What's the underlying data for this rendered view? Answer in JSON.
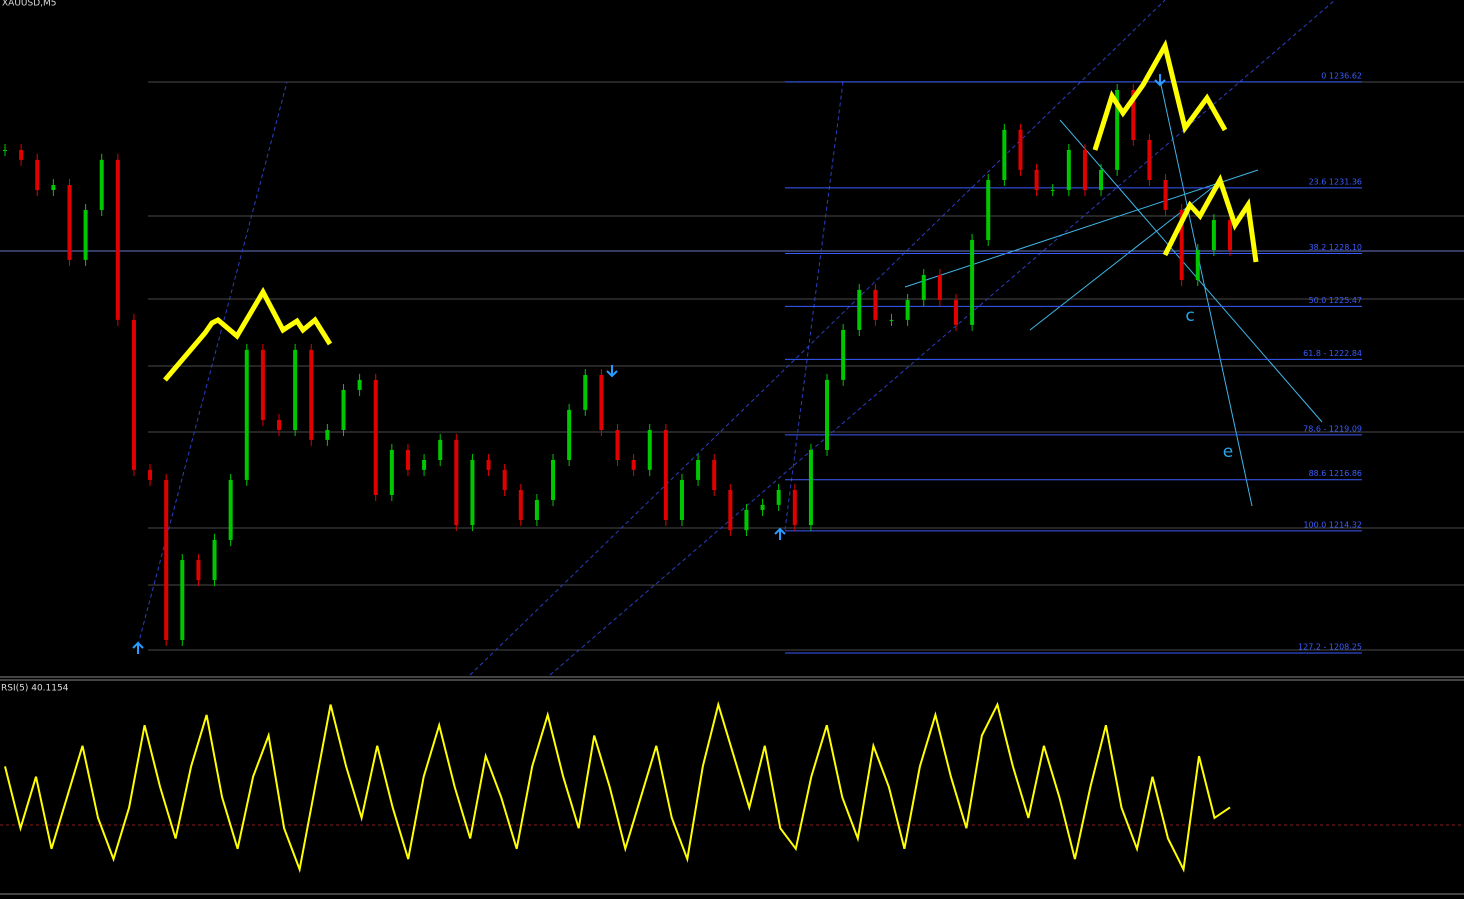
{
  "header": {
    "symbol": "XAUUSD,M5"
  },
  "chart_data": [
    {
      "type": "candlestick",
      "ylim": [
        1207.16,
        1240.69
      ],
      "up_color": "#00c800",
      "down_color": "#e00000",
      "values": [
        1233.24,
        1232.75,
        1231.25,
        1231.5,
        1227.78,
        1230.26,
        1232.75,
        1224.8,
        1217.35,
        1216.85,
        1208.9,
        1212.87,
        1211.88,
        1213.87,
        1216.85,
        1223.31,
        1219.83,
        1219.33,
        1223.31,
        1218.84,
        1219.33,
        1221.32,
        1221.82,
        1216.1,
        1218.34,
        1217.35,
        1217.84,
        1218.84,
        1214.61,
        1217.84,
        1217.35,
        1216.35,
        1214.86,
        1215.85,
        1217.84,
        1220.33,
        1222.06,
        1219.33,
        1217.84,
        1217.35,
        1219.33,
        1214.86,
        1216.85,
        1217.84,
        1216.35,
        1214.36,
        1215.36,
        1215.61,
        1216.35,
        1214.61,
        1218.34,
        1221.82,
        1224.3,
        1226.29,
        1224.8,
        1224.8,
        1225.79,
        1227.03,
        1225.79,
        1224.55,
        1228.77,
        1231.75,
        1234.24,
        1232.25,
        1231.25,
        1231.25,
        1233.24,
        1231.25,
        1232.25,
        1236.22,
        1233.74,
        1231.75,
        1230.26,
        1226.78,
        1228.27,
        1229.76,
        1228.27
      ],
      "fib_levels": [
        {
          "value": 1236.62,
          "label": "0 1236.62"
        },
        {
          "value": 1231.36,
          "label": "23.6 1231.36"
        },
        {
          "value": 1228.1,
          "label": "38.2 1228.10"
        },
        {
          "value": 1225.47,
          "label": "50.0 1225.47"
        },
        {
          "value": 1222.84,
          "label": "61.8 - 1222.84"
        },
        {
          "value": 1219.09,
          "label": "78.6 - 1219.09"
        },
        {
          "value": 1216.86,
          "label": "88.6 1216.86"
        },
        {
          "value": 1214.32,
          "label": "100.0 1214.32"
        },
        {
          "value": 1208.25,
          "label": "127.2 - 1208.25"
        }
      ],
      "fib_color": "#3a5cff",
      "annotations": [
        "c",
        "e"
      ]
    },
    {
      "type": "line",
      "title": "RSI(5) 40.1154",
      "ylim": [
        0,
        100
      ],
      "color": "#ffff00",
      "values": [
        60,
        30,
        55,
        20,
        45,
        70,
        35,
        15,
        40,
        80,
        50,
        25,
        60,
        85,
        45,
        20,
        55,
        75,
        30,
        10,
        50,
        90,
        60,
        35,
        70,
        40,
        15,
        55,
        80,
        50,
        25,
        65,
        45,
        20,
        60,
        85,
        55,
        30,
        75,
        50,
        20,
        45,
        70,
        35,
        15,
        60,
        90,
        65,
        40,
        70,
        30,
        20,
        55,
        80,
        45,
        25,
        70,
        50,
        20,
        60,
        85,
        55,
        30,
        75,
        90,
        60,
        35,
        70,
        45,
        15,
        50,
        80,
        40,
        20,
        55,
        25,
        10,
        65,
        35,
        40.1154
      ]
    }
  ]
}
